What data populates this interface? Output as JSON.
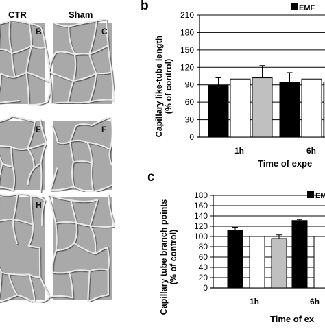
{
  "micrographs": {
    "col_headers": [
      "CTR",
      "Sham"
    ],
    "tiles": [
      {
        "label": "B",
        "row": 0,
        "col": 0
      },
      {
        "label": "C",
        "row": 0,
        "col": 1
      },
      {
        "label": "E",
        "row": 1,
        "col": 0
      },
      {
        "label": "F",
        "row": 1,
        "col": 1
      },
      {
        "label": "H",
        "row": 2,
        "col": 0
      },
      {
        "label": "",
        "row": 2,
        "col": 1
      }
    ]
  },
  "chart_data": [
    {
      "panel": "b",
      "type": "bar",
      "ylabel_lines": [
        "Capillary like-tube length",
        "(% of control)"
      ],
      "xlabel": "Time of expe",
      "ylim": [
        0,
        210
      ],
      "yticks": [
        0,
        30,
        60,
        90,
        120,
        150,
        180,
        210
      ],
      "grid": true,
      "legend": {
        "position": "top-right",
        "entries": [
          {
            "name": "EMF",
            "color": "#000000"
          }
        ]
      },
      "categories": [
        "1h",
        "6h"
      ],
      "series": [
        {
          "name": "EMF",
          "color": "#000000",
          "values": [
            89,
            94
          ],
          "errors": [
            13,
            17
          ]
        },
        {
          "name": "",
          "color": "#ffffff",
          "values": [
            100,
            100
          ],
          "errors": [
            0,
            0
          ]
        },
        {
          "name": "",
          "color": "#c0c0c0",
          "values": [
            102,
            95
          ],
          "errors": [
            21,
            0
          ]
        }
      ]
    },
    {
      "panel": "c",
      "type": "bar",
      "ylabel_lines": [
        "Capillary tube branch points",
        "(% of control)"
      ],
      "xlabel": "Time of ex",
      "ylim": [
        0,
        180
      ],
      "yticks": [
        0,
        20,
        40,
        60,
        80,
        100,
        120,
        140,
        160,
        180
      ],
      "grid": true,
      "legend": {
        "position": "top-right",
        "entries": [
          {
            "name": "EM",
            "color": "#000000"
          }
        ]
      },
      "categories": [
        "1h",
        "6h"
      ],
      "series": [
        {
          "name": "EMF",
          "color": "#000000",
          "values": [
            112,
            131
          ],
          "errors": [
            6,
            2
          ]
        },
        {
          "name": "",
          "color": "#ffffff",
          "values": [
            100,
            100
          ],
          "errors": [
            0,
            0
          ]
        },
        {
          "name": "",
          "color": "#c0c0c0",
          "values": [
            96,
            0
          ],
          "errors": [
            7,
            0
          ]
        }
      ]
    }
  ]
}
